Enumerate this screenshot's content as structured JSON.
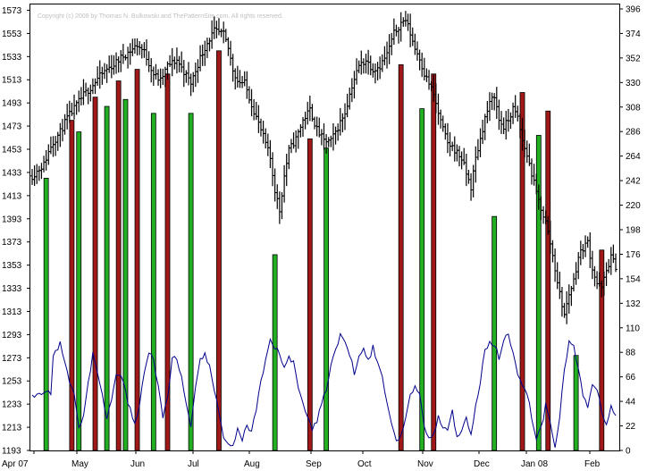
{
  "chart_data": {
    "type": "ohlc",
    "title": "",
    "copyright": "Copyright (c) 2008 by Thomas N. Bulkowski and ThePatternSite.com. All rights reserved.",
    "xlabel": "",
    "ylabel": "",
    "grid": false,
    "x_ticks": [
      "Apr 07",
      "May",
      "Jun",
      "Jul",
      "Aug",
      "Sep",
      "Oct",
      "Nov",
      "Dec",
      "Jan 08",
      "Feb"
    ],
    "left_axis": {
      "ticks": [
        "1573",
        "1553",
        "1533",
        "1513",
        "1493",
        "1473",
        "1453",
        "1433",
        "1413",
        "1393",
        "1373",
        "1353",
        "1333",
        "1313",
        "1293",
        "1273",
        "1253",
        "1233",
        "1213",
        "1193"
      ],
      "ylim": [
        1193,
        1578
      ]
    },
    "right_axis": {
      "ticks": [
        "396",
        "374",
        "352",
        "330",
        "308",
        "286",
        "264",
        "242",
        "220",
        "198",
        "176",
        "154",
        "132",
        "110",
        "88",
        "66",
        "44",
        "22",
        "0"
      ],
      "ylim": [
        0,
        400
      ]
    },
    "colors": {
      "price_bars": "#000000",
      "oscillator": "#00008b",
      "buy_signal": "#22b022",
      "sell_signal": "#a01818",
      "signal_outline": "#000000"
    },
    "price_anchors": [
      [
        0,
        1430
      ],
      [
        2,
        1434
      ],
      [
        5,
        1440
      ],
      [
        8,
        1456
      ],
      [
        12,
        1468
      ],
      [
        15,
        1480
      ],
      [
        18,
        1488
      ],
      [
        22,
        1500
      ],
      [
        25,
        1506
      ],
      [
        28,
        1514
      ],
      [
        32,
        1522
      ],
      [
        35,
        1526
      ],
      [
        38,
        1532
      ],
      [
        42,
        1538
      ],
      [
        45,
        1543
      ],
      [
        48,
        1537
      ],
      [
        52,
        1518
      ],
      [
        55,
        1512
      ],
      [
        58,
        1525
      ],
      [
        62,
        1530
      ],
      [
        65,
        1520
      ],
      [
        68,
        1510
      ],
      [
        72,
        1532
      ],
      [
        75,
        1545
      ],
      [
        78,
        1555
      ],
      [
        82,
        1552
      ],
      [
        84,
        1540
      ],
      [
        86,
        1522
      ],
      [
        88,
        1512
      ],
      [
        91,
        1510
      ],
      [
        94,
        1492
      ],
      [
        97,
        1475
      ],
      [
        100,
        1458
      ],
      [
        102,
        1445
      ],
      [
        104,
        1418
      ],
      [
        106,
        1400
      ],
      [
        108,
        1430
      ],
      [
        110,
        1452
      ],
      [
        113,
        1462
      ],
      [
        116,
        1478
      ],
      [
        119,
        1487
      ],
      [
        122,
        1470
      ],
      [
        125,
        1460
      ],
      [
        128,
        1460
      ],
      [
        131,
        1472
      ],
      [
        134,
        1485
      ],
      [
        137,
        1508
      ],
      [
        140,
        1525
      ],
      [
        143,
        1530
      ],
      [
        146,
        1522
      ],
      [
        149,
        1525
      ],
      [
        152,
        1535
      ],
      [
        155,
        1553
      ],
      [
        158,
        1562
      ],
      [
        160,
        1565
      ],
      [
        162,
        1553
      ],
      [
        164,
        1540
      ],
      [
        166,
        1532
      ],
      [
        168,
        1518
      ],
      [
        170,
        1510
      ],
      [
        172,
        1500
      ],
      [
        174,
        1484
      ],
      [
        176,
        1470
      ],
      [
        178,
        1458
      ],
      [
        180,
        1455
      ],
      [
        182,
        1450
      ],
      [
        184,
        1445
      ],
      [
        186,
        1432
      ],
      [
        188,
        1420
      ],
      [
        190,
        1445
      ],
      [
        192,
        1462
      ],
      [
        194,
        1480
      ],
      [
        196,
        1492
      ],
      [
        198,
        1500
      ],
      [
        200,
        1478
      ],
      [
        202,
        1472
      ],
      [
        204,
        1478
      ],
      [
        206,
        1488
      ],
      [
        208,
        1480
      ],
      [
        210,
        1460
      ],
      [
        212,
        1448
      ],
      [
        214,
        1432
      ],
      [
        216,
        1415
      ],
      [
        218,
        1402
      ],
      [
        220,
        1390
      ],
      [
        222,
        1372
      ],
      [
        224,
        1350
      ],
      [
        226,
        1328
      ],
      [
        228,
        1310
      ],
      [
        230,
        1328
      ],
      [
        232,
        1340
      ],
      [
        234,
        1360
      ],
      [
        236,
        1368
      ],
      [
        238,
        1373
      ],
      [
        240,
        1350
      ],
      [
        242,
        1337
      ],
      [
        244,
        1333
      ],
      [
        246,
        1348
      ],
      [
        248,
        1360
      ],
      [
        250,
        1352
      ]
    ],
    "oscillator_anchors": [
      [
        0,
        50
      ],
      [
        8,
        52
      ],
      [
        9,
        85
      ],
      [
        10,
        92
      ],
      [
        11,
        88
      ],
      [
        12,
        96
      ],
      [
        13,
        88
      ],
      [
        14,
        80
      ],
      [
        16,
        60
      ],
      [
        18,
        52
      ],
      [
        20,
        22
      ],
      [
        22,
        30
      ],
      [
        24,
        62
      ],
      [
        26,
        86
      ],
      [
        28,
        68
      ],
      [
        30,
        50
      ],
      [
        32,
        30
      ],
      [
        34,
        44
      ],
      [
        36,
        70
      ],
      [
        38,
        66
      ],
      [
        40,
        52
      ],
      [
        42,
        36
      ],
      [
        44,
        22
      ],
      [
        46,
        42
      ],
      [
        48,
        68
      ],
      [
        50,
        90
      ],
      [
        52,
        82
      ],
      [
        54,
        56
      ],
      [
        56,
        30
      ],
      [
        58,
        48
      ],
      [
        60,
        82
      ],
      [
        62,
        84
      ],
      [
        64,
        64
      ],
      [
        66,
        40
      ],
      [
        68,
        20
      ],
      [
        70,
        54
      ],
      [
        72,
        82
      ],
      [
        74,
        88
      ],
      [
        76,
        74
      ],
      [
        78,
        54
      ],
      [
        80,
        32
      ],
      [
        82,
        12
      ],
      [
        84,
        8
      ],
      [
        86,
        4
      ],
      [
        88,
        18
      ],
      [
        90,
        10
      ],
      [
        92,
        22
      ],
      [
        94,
        16
      ],
      [
        96,
        36
      ],
      [
        98,
        60
      ],
      [
        100,
        80
      ],
      [
        102,
        98
      ],
      [
        104,
        92
      ],
      [
        106,
        86
      ],
      [
        108,
        76
      ],
      [
        110,
        84
      ],
      [
        112,
        78
      ],
      [
        114,
        56
      ],
      [
        116,
        42
      ],
      [
        118,
        32
      ],
      [
        120,
        20
      ],
      [
        122,
        26
      ],
      [
        124,
        42
      ],
      [
        126,
        56
      ],
      [
        128,
        76
      ],
      [
        130,
        90
      ],
      [
        132,
        102
      ],
      [
        134,
        98
      ],
      [
        136,
        88
      ],
      [
        138,
        70
      ],
      [
        140,
        86
      ],
      [
        142,
        94
      ],
      [
        144,
        80
      ],
      [
        146,
        92
      ],
      [
        148,
        78
      ],
      [
        150,
        66
      ],
      [
        152,
        44
      ],
      [
        154,
        24
      ],
      [
        156,
        8
      ],
      [
        158,
        16
      ],
      [
        160,
        28
      ],
      [
        162,
        48
      ],
      [
        164,
        60
      ],
      [
        166,
        48
      ],
      [
        168,
        24
      ],
      [
        170,
        10
      ],
      [
        172,
        16
      ],
      [
        174,
        30
      ],
      [
        176,
        22
      ],
      [
        178,
        18
      ],
      [
        180,
        34
      ],
      [
        182,
        12
      ],
      [
        184,
        20
      ],
      [
        186,
        28
      ],
      [
        188,
        16
      ],
      [
        190,
        40
      ],
      [
        192,
        62
      ],
      [
        194,
        88
      ],
      [
        196,
        98
      ],
      [
        198,
        96
      ],
      [
        200,
        82
      ],
      [
        202,
        98
      ],
      [
        204,
        104
      ],
      [
        206,
        88
      ],
      [
        208,
        70
      ],
      [
        210,
        60
      ],
      [
        212,
        52
      ],
      [
        214,
        30
      ],
      [
        216,
        12
      ],
      [
        218,
        20
      ],
      [
        220,
        40
      ],
      [
        222,
        26
      ],
      [
        224,
        4
      ],
      [
        226,
        32
      ],
      [
        228,
        70
      ],
      [
        230,
        98
      ],
      [
        232,
        92
      ],
      [
        234,
        76
      ],
      [
        236,
        50
      ],
      [
        238,
        40
      ],
      [
        240,
        58
      ],
      [
        242,
        52
      ],
      [
        244,
        36
      ],
      [
        246,
        22
      ],
      [
        248,
        40
      ],
      [
        250,
        30
      ]
    ],
    "signals": [
      {
        "x": 6,
        "type": "buy",
        "y": 1428
      },
      {
        "x": 17,
        "type": "sell",
        "y": 1478
      },
      {
        "x": 20,
        "type": "buy",
        "y": 1468
      },
      {
        "x": 27,
        "type": "sell",
        "y": 1498
      },
      {
        "x": 32,
        "type": "buy",
        "y": 1490
      },
      {
        "x": 37,
        "type": "sell",
        "y": 1512
      },
      {
        "x": 40,
        "type": "buy",
        "y": 1496
      },
      {
        "x": 45,
        "type": "sell",
        "y": 1522
      },
      {
        "x": 52,
        "type": "buy",
        "y": 1484
      },
      {
        "x": 58,
        "type": "sell",
        "y": 1518
      },
      {
        "x": 68,
        "type": "buy",
        "y": 1484
      },
      {
        "x": 80,
        "type": "sell",
        "y": 1538
      },
      {
        "x": 104,
        "type": "buy",
        "y": 1362
      },
      {
        "x": 119,
        "type": "sell",
        "y": 1462
      },
      {
        "x": 126,
        "type": "buy",
        "y": 1454
      },
      {
        "x": 158,
        "type": "sell",
        "y": 1526
      },
      {
        "x": 167,
        "type": "buy",
        "y": 1488
      },
      {
        "x": 172,
        "type": "sell",
        "y": 1518
      },
      {
        "x": 198,
        "type": "buy",
        "y": 1395
      },
      {
        "x": 210,
        "type": "sell",
        "y": 1502
      },
      {
        "x": 217,
        "type": "buy",
        "y": 1465
      },
      {
        "x": 221,
        "type": "sell",
        "y": 1486
      },
      {
        "x": 233,
        "type": "buy",
        "y": 1275
      },
      {
        "x": 244,
        "type": "sell",
        "y": 1366
      }
    ]
  }
}
